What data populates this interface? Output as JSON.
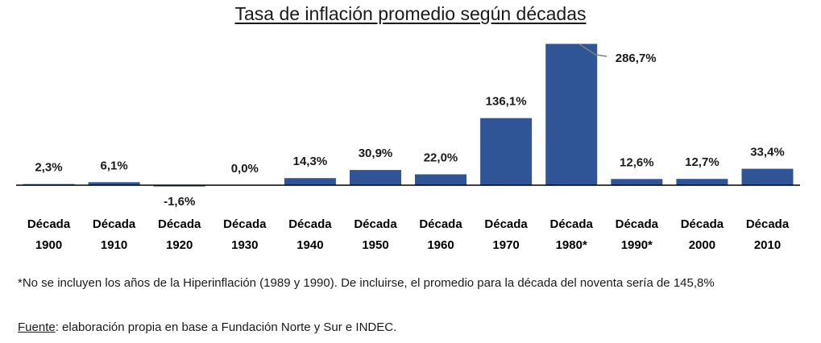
{
  "chart_data": {
    "type": "bar",
    "title": "Tasa de inflación promedio según décadas",
    "categories": [
      [
        "Década",
        "1900"
      ],
      [
        "Década",
        "1910"
      ],
      [
        "Década",
        "1920"
      ],
      [
        "Década",
        "1930"
      ],
      [
        "Década",
        "1940"
      ],
      [
        "Década",
        "1950"
      ],
      [
        "Década",
        "1960"
      ],
      [
        "Década",
        "1970"
      ],
      [
        "Década",
        "1980*"
      ],
      [
        "Década",
        "1990*"
      ],
      [
        "Década",
        "2000"
      ],
      [
        "Década",
        "2010"
      ]
    ],
    "values": [
      2.3,
      6.1,
      -1.6,
      0.0,
      14.3,
      30.9,
      22.0,
      136.1,
      286.7,
      12.6,
      12.7,
      33.4
    ],
    "data_labels": [
      "2,3%",
      "6,1%",
      "-1,6%",
      "0,0%",
      "14,3%",
      "30,9%",
      "22,0%",
      "136,1%",
      "286,7%",
      "12,6%",
      "12,7%",
      "33,4%"
    ],
    "bar_color": "#2f5597",
    "axis_color": "#000000",
    "xlabel": "",
    "ylabel": "",
    "grid": false
  },
  "footnote": "*No se incluyen los años de la Hiperinflación (1989 y 1990). De incluirse, el promedio para la década del noventa sería de 145,8%",
  "source": {
    "label": "Fuente",
    "text": ": elaboración propia en base a Fundación Norte y Sur e INDEC."
  }
}
